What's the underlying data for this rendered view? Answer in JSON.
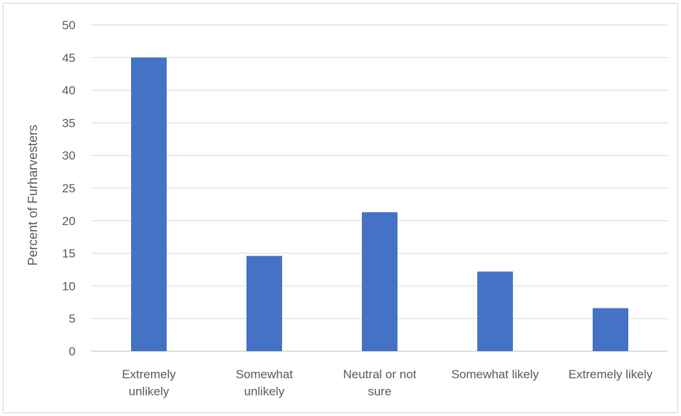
{
  "chart_data": {
    "type": "bar",
    "categories": [
      [
        "Extremely",
        "unlikely"
      ],
      [
        "Somewhat",
        "unlikely"
      ],
      [
        "Neutral or not",
        "sure"
      ],
      [
        "Somewhat likely"
      ],
      [
        "Extremely likely"
      ]
    ],
    "values": [
      45.0,
      14.6,
      21.3,
      12.2,
      6.6
    ],
    "ylabel": "Percent of Furharvesters",
    "ylim": [
      0,
      50
    ],
    "yticks": [
      0,
      5,
      10,
      15,
      20,
      25,
      30,
      35,
      40,
      45,
      50
    ],
    "grid": true,
    "bar_color": "#4472c4",
    "grid_color": "#d9d9d9"
  }
}
